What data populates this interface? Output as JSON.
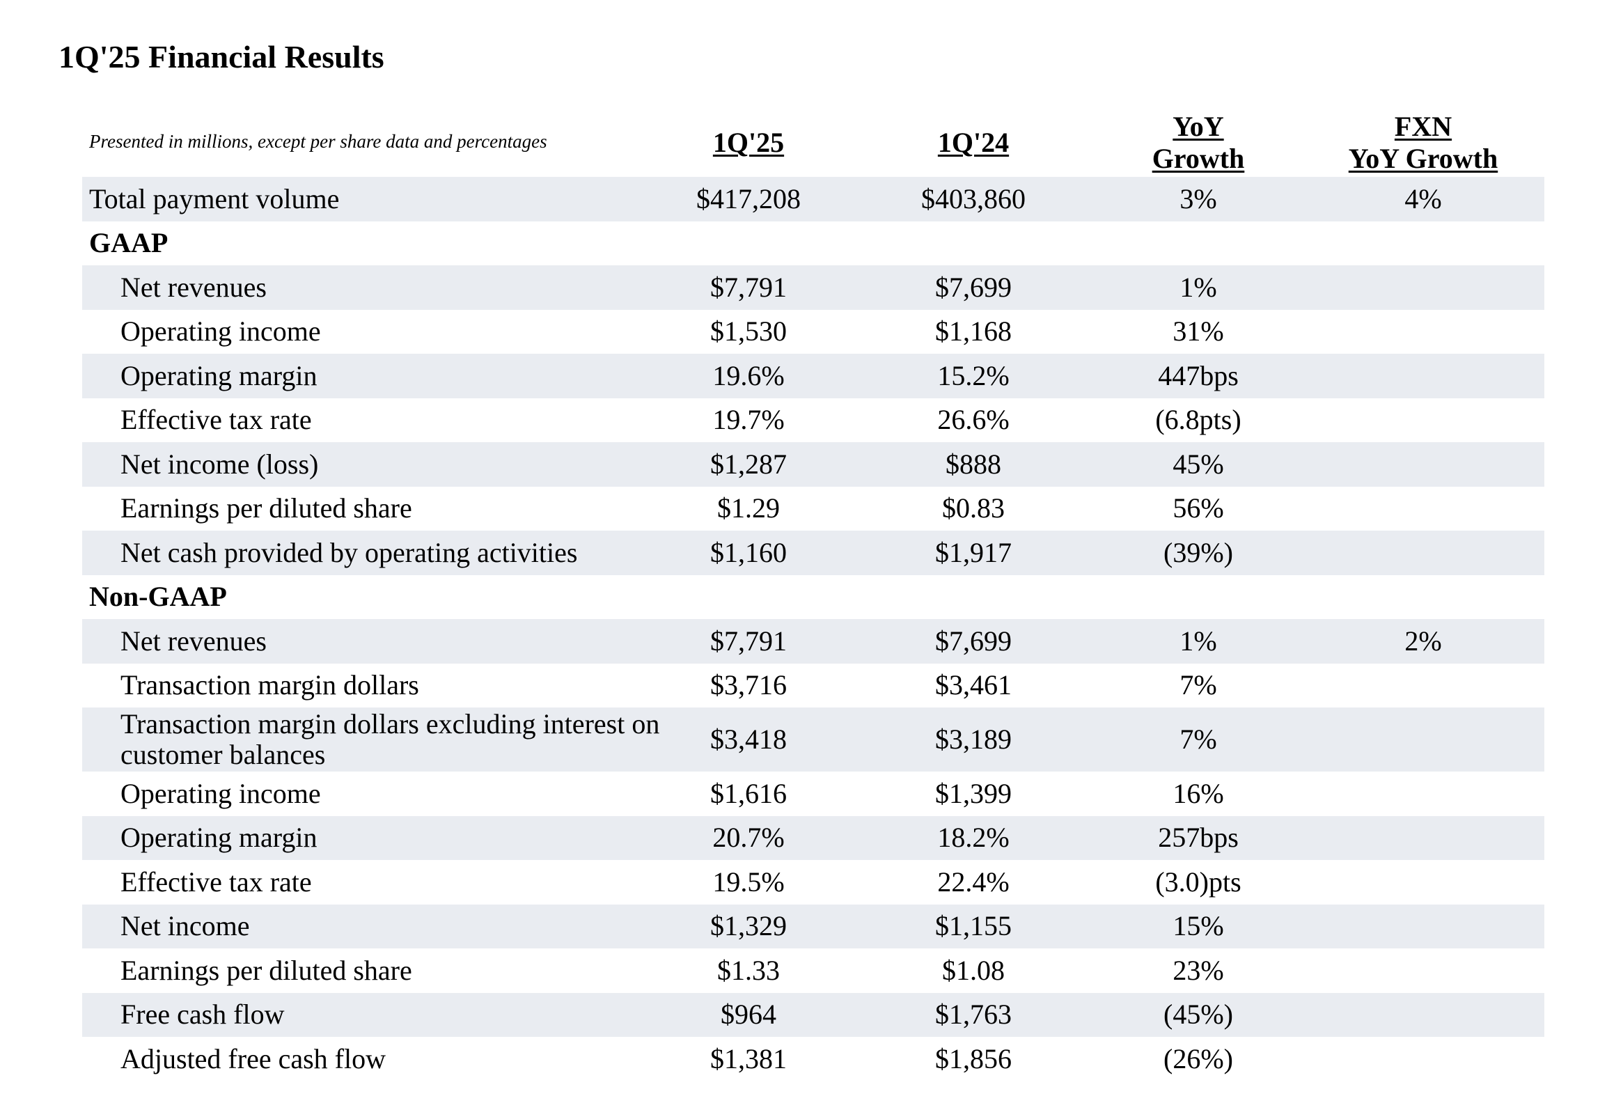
{
  "title": "1Q'25 Financial Results",
  "caption": "Presented in millions, except per share data and percentages",
  "columns": {
    "c1": [
      "1Q'25"
    ],
    "c2": [
      "1Q'24"
    ],
    "c3": [
      "YoY",
      "Growth"
    ],
    "c4": [
      "FXN",
      "YoY Growth"
    ]
  },
  "rows": [
    {
      "label": "Total payment volume",
      "q125": "$417,208",
      "q124": "$403,860",
      "yoy": "3%",
      "fxn": "4%"
    },
    {
      "label": "GAAP"
    },
    {
      "label": "Net revenues",
      "q125": "$7,791",
      "q124": "$7,699",
      "yoy": "1%",
      "fxn": ""
    },
    {
      "label": "Operating income",
      "q125": "$1,530",
      "q124": "$1,168",
      "yoy": "31%",
      "fxn": ""
    },
    {
      "label": "Operating margin",
      "q125": "19.6%",
      "q124": "15.2%",
      "yoy": "447bps",
      "fxn": ""
    },
    {
      "label": "Effective tax rate",
      "q125": "19.7%",
      "q124": "26.6%",
      "yoy": "(6.8pts)",
      "fxn": ""
    },
    {
      "label": "Net income (loss)",
      "q125": "$1,287",
      "q124": "$888",
      "yoy": "45%",
      "fxn": ""
    },
    {
      "label": "Earnings per diluted share",
      "q125": "$1.29",
      "q124": "$0.83",
      "yoy": "56%",
      "fxn": ""
    },
    {
      "label": "Net cash provided by operating activities",
      "q125": "$1,160",
      "q124": "$1,917",
      "yoy": "(39%)",
      "fxn": ""
    },
    {
      "label": "Non-GAAP"
    },
    {
      "label": "Net revenues",
      "q125": "$7,791",
      "q124": "$7,699",
      "yoy": "1%",
      "fxn": "2%"
    },
    {
      "label": "Transaction margin dollars",
      "q125": "$3,716",
      "q124": "$3,461",
      "yoy": "7%",
      "fxn": ""
    },
    {
      "label": "Transaction margin dollars excluding interest on customer balances",
      "q125": "$3,418",
      "q124": "$3,189",
      "yoy": "7%",
      "fxn": ""
    },
    {
      "label": "Operating income",
      "q125": "$1,616",
      "q124": "$1,399",
      "yoy": "16%",
      "fxn": ""
    },
    {
      "label": "Operating margin",
      "q125": "20.7%",
      "q124": "18.2%",
      "yoy": "257bps",
      "fxn": ""
    },
    {
      "label": "Effective tax rate",
      "q125": "19.5%",
      "q124": "22.4%",
      "yoy": "(3.0)pts",
      "fxn": ""
    },
    {
      "label": "Net income",
      "q125": "$1,329",
      "q124": "$1,155",
      "yoy": "15%",
      "fxn": ""
    },
    {
      "label": "Earnings per diluted share",
      "q125": "$1.33",
      "q124": "$1.08",
      "yoy": "23%",
      "fxn": ""
    },
    {
      "label": "Free cash flow",
      "q125": "$964",
      "q124": "$1,763",
      "yoy": "(45%)",
      "fxn": ""
    },
    {
      "label": "Adjusted free cash flow",
      "q125": "$1,381",
      "q124": "$1,856",
      "yoy": "(26%)",
      "fxn": ""
    }
  ]
}
